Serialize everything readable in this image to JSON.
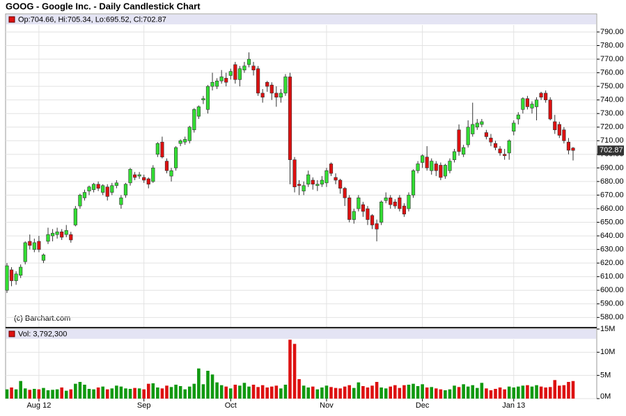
{
  "chart_data": {
    "type": "candlestick",
    "title": "GOOG - Google Inc. - Daily Candlestick Chart",
    "price_legend": "Op:704.66, Hi:705.34, Lo:695.52, Cl:702.87",
    "watermark": "(c) Barchart.com",
    "up_color": "#33dd33",
    "down_color": "#dd1111",
    "grid": true,
    "categories": [
      null,
      null,
      null,
      null,
      null,
      null,
      null,
      "Aug 12",
      null,
      null,
      null,
      null,
      null,
      null,
      null,
      null,
      null,
      null,
      null,
      null,
      null,
      null,
      null,
      null,
      null,
      null,
      null,
      null,
      null,
      null,
      "Sep",
      null,
      null,
      null,
      null,
      null,
      null,
      null,
      null,
      null,
      null,
      null,
      null,
      null,
      null,
      null,
      null,
      null,
      null,
      "Oct",
      null,
      null,
      null,
      null,
      null,
      null,
      null,
      null,
      null,
      null,
      null,
      null,
      null,
      null,
      null,
      null,
      null,
      null,
      null,
      null,
      "Nov",
      null,
      null,
      null,
      null,
      null,
      null,
      null,
      null,
      null,
      null,
      null,
      null,
      null,
      null,
      null,
      null,
      null,
      null,
      null,
      null,
      "Dec",
      null,
      null,
      null,
      null,
      null,
      null,
      null,
      null,
      null,
      null,
      null,
      null,
      null,
      null,
      null,
      null,
      null,
      null,
      null,
      "Jan 13",
      null,
      null,
      null,
      null,
      null,
      null,
      null,
      null,
      null,
      null,
      null,
      null,
      null
    ],
    "open": [
      600,
      615,
      607,
      611,
      621,
      636,
      630,
      636,
      622,
      636,
      640,
      641,
      643,
      641,
      641,
      648,
      662,
      668,
      673,
      674,
      678,
      672,
      676,
      672,
      677,
      663,
      670,
      679,
      685,
      684,
      683,
      682,
      680,
      700,
      709,
      695,
      684,
      690,
      708,
      709,
      710,
      718,
      728,
      740,
      733,
      750,
      750,
      754,
      756,
      758,
      766,
      755,
      762,
      766,
      765,
      763,
      745,
      753,
      751,
      745,
      742,
      745,
      757,
      696,
      678,
      673,
      678,
      681,
      677,
      678,
      679,
      693,
      683,
      681,
      675,
      668,
      652,
      660,
      663,
      660,
      655,
      649,
      650,
      666,
      668,
      665,
      668,
      662,
      660,
      670,
      688,
      694,
      698,
      688,
      693,
      692,
      684,
      688,
      696,
      718,
      700,
      707,
      715,
      720,
      722,
      716,
      712,
      708,
      704,
      700,
      701,
      717,
      726,
      733,
      741,
      734,
      735,
      745,
      745,
      740,
      724,
      722,
      718,
      709,
      704.66
    ],
    "high": [
      620,
      617,
      614,
      619,
      636,
      641,
      638,
      640,
      627,
      646,
      645,
      646,
      645,
      648,
      643,
      662,
      671,
      674,
      677,
      679,
      680,
      678,
      678,
      679,
      681,
      670,
      679,
      690,
      687,
      687,
      685,
      683,
      692,
      709,
      713,
      697,
      690,
      706,
      711,
      713,
      721,
      734,
      736,
      743,
      751,
      760,
      756,
      762,
      760,
      763,
      768,
      765,
      768,
      775,
      768,
      765,
      748,
      754,
      753,
      750,
      748,
      759,
      760,
      698,
      681,
      680,
      688,
      683,
      681,
      684,
      690,
      694,
      686,
      682,
      676,
      670,
      660,
      670,
      665,
      662,
      656,
      652,
      666,
      672,
      670,
      667,
      670,
      664,
      672,
      689,
      695,
      700,
      706,
      697,
      695,
      694,
      693,
      697,
      704,
      722,
      707,
      725,
      738,
      726,
      726,
      718,
      715,
      710,
      706,
      704,
      711,
      725,
      731,
      742,
      743,
      739,
      742,
      746,
      747,
      742,
      729,
      724,
      720,
      712,
      705.34
    ],
    "low": [
      598,
      603,
      604,
      609,
      619,
      630,
      628,
      628,
      620,
      634,
      636,
      638,
      637,
      639,
      635,
      647,
      660,
      666,
      670,
      672,
      673,
      670,
      666,
      670,
      675,
      660,
      668,
      677,
      681,
      682,
      679,
      675,
      679,
      698,
      697,
      686,
      680,
      688,
      706,
      707,
      708,
      716,
      726,
      737,
      730,
      747,
      748,
      752,
      750,
      755,
      752,
      750,
      760,
      764,
      758,
      743,
      738,
      746,
      740,
      735,
      738,
      743,
      678,
      672,
      670,
      670,
      676,
      674,
      673,
      676,
      676,
      684,
      678,
      671,
      662,
      650,
      649,
      658,
      654,
      648,
      645,
      636,
      648,
      664,
      660,
      660,
      658,
      654,
      658,
      668,
      686,
      690,
      688,
      685,
      684,
      681,
      682,
      686,
      694,
      699,
      698,
      705,
      713,
      718,
      720,
      711,
      706,
      703,
      699,
      696,
      696,
      714,
      722,
      730,
      733,
      730,
      725,
      740,
      738,
      725,
      715,
      712,
      708,
      700,
      695.52
    ],
    "close": [
      618,
      607,
      612,
      617,
      635,
      633,
      635,
      630,
      626,
      641,
      642,
      643,
      639,
      644,
      637,
      660,
      670,
      672,
      676,
      678,
      675,
      677,
      669,
      677,
      679,
      668,
      678,
      689,
      683,
      685,
      681,
      678,
      690,
      708,
      698,
      688,
      688,
      705,
      710,
      711,
      720,
      733,
      735,
      741,
      750,
      753,
      754,
      757,
      753,
      761,
      755,
      763,
      765,
      770,
      762,
      745,
      742,
      750,
      745,
      742,
      745,
      757,
      696,
      676,
      677,
      677,
      685,
      678,
      678,
      681,
      688,
      686,
      681,
      675,
      668,
      652,
      658,
      668,
      658,
      652,
      648,
      645,
      665,
      668,
      663,
      662,
      660,
      656,
      670,
      688,
      693,
      699,
      690,
      695,
      688,
      683,
      692,
      695,
      702,
      702,
      705,
      720,
      722,
      723,
      724,
      713,
      709,
      705,
      701,
      699,
      710,
      723,
      729,
      741,
      735,
      737,
      740,
      742,
      740,
      726,
      718,
      714,
      710,
      703,
      702.87
    ],
    "ylim": [
      573,
      795
    ],
    "yticks": [
      {
        "value": 580,
        "label": "580.00"
      },
      {
        "value": 590,
        "label": "590.00"
      },
      {
        "value": 600,
        "label": "600.00"
      },
      {
        "value": 610,
        "label": "610.00"
      },
      {
        "value": 620,
        "label": "620.00"
      },
      {
        "value": 630,
        "label": "630.00"
      },
      {
        "value": 640,
        "label": "640.00"
      },
      {
        "value": 650,
        "label": "650.00"
      },
      {
        "value": 660,
        "label": "660.00"
      },
      {
        "value": 670,
        "label": "670.00"
      },
      {
        "value": 680,
        "label": "680.00"
      },
      {
        "value": 690,
        "label": "690.00"
      },
      {
        "value": 700,
        "label": "700.00"
      },
      {
        "value": 710,
        "label": "710.00"
      },
      {
        "value": 720,
        "label": "720.00"
      },
      {
        "value": 730,
        "label": "730.00"
      },
      {
        "value": 740,
        "label": "740.00"
      },
      {
        "value": 750,
        "label": "750.00"
      },
      {
        "value": 760,
        "label": "760.00"
      },
      {
        "value": 770,
        "label": "770.00"
      },
      {
        "value": 780,
        "label": "780.00"
      },
      {
        "value": 790,
        "label": "790.00"
      }
    ],
    "volume": {
      "legend": "Vol: 3,792,300",
      "values": [
        2.0,
        2.4,
        2.0,
        3.8,
        2.2,
        1.9,
        2.1,
        2.0,
        2.3,
        1.8,
        1.9,
        2.0,
        2.4,
        1.7,
        2.0,
        3.2,
        3.6,
        3.0,
        2.1,
        2.0,
        2.4,
        2.6,
        2.0,
        2.2,
        2.8,
        2.6,
        2.2,
        2.1,
        2.3,
        2.2,
        2.0,
        3.2,
        3.3,
        2.4,
        2.2,
        2.8,
        2.5,
        3.0,
        2.7,
        2.0,
        2.6,
        3.2,
        6.5,
        3.1,
        6.0,
        5.2,
        3.5,
        2.9,
        2.6,
        2.2,
        3.0,
        2.8,
        3.4,
        2.6,
        3.0,
        2.5,
        2.9,
        2.4,
        2.6,
        2.8,
        2.2,
        3.0,
        12.7,
        11.8,
        4.2,
        2.8,
        2.4,
        2.6,
        2.0,
        2.4,
        2.8,
        2.5,
        2.3,
        2.2,
        2.6,
        2.9,
        2.3,
        3.5,
        2.7,
        2.4,
        2.8,
        3.6,
        2.4,
        2.2,
        2.6,
        2.9,
        2.3,
        2.9,
        3.0,
        3.2,
        2.7,
        3.1,
        2.4,
        2.5,
        2.2,
        2.0,
        1.8,
        2.0,
        2.8,
        2.5,
        3.1,
        2.6,
        2.9,
        2.3,
        3.4,
        2.2,
        1.8,
        2.1,
        2.4,
        2.0,
        2.6,
        2.4,
        2.6,
        2.8,
        2.9,
        2.6,
        2.9,
        2.6,
        2.4,
        2.5,
        4.0,
        2.8,
        2.9,
        3.6,
        3.7923
      ],
      "ylim": [
        0,
        15
      ],
      "yticks": [
        {
          "value": 0,
          "label": "0M"
        },
        {
          "value": 5,
          "label": "5M"
        },
        {
          "value": 10,
          "label": "10M"
        },
        {
          "value": 15,
          "label": "15M"
        }
      ]
    }
  }
}
